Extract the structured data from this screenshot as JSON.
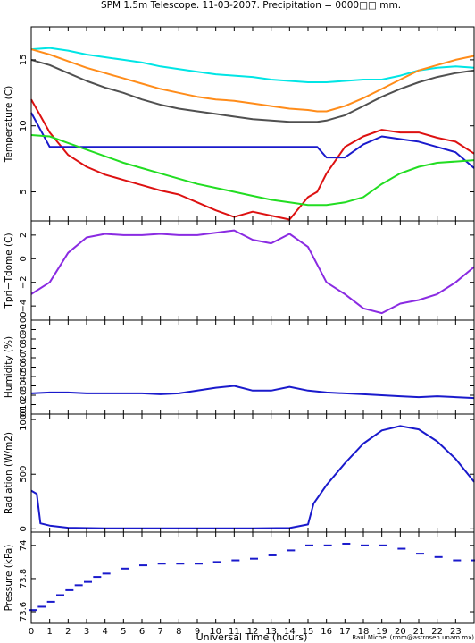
{
  "title": "SPM 1.5m Telescope. 11-03-2007. Precipitation = 0000□□ mm.",
  "credit": "Raul Michel (rmm@astrosen.unam.mx)",
  "xlabel": "Universal Time (hours)",
  "xlim": [
    0,
    24
  ],
  "xticks": [
    "0",
    "1",
    "2",
    "3",
    "4",
    "5",
    "6",
    "7",
    "8",
    "9",
    "10",
    "11",
    "12",
    "13",
    "14",
    "15",
    "16",
    "17",
    "18",
    "19",
    "20",
    "21",
    "22",
    "23"
  ],
  "chart_data": [
    {
      "type": "line",
      "ylabel": "Temperature (C)",
      "ylim": [
        2.8,
        17.5
      ],
      "yticks": [
        5,
        10,
        15
      ],
      "ytick_labels": [
        "5",
        "10",
        "15"
      ],
      "x": [
        0,
        1,
        2,
        3,
        4,
        5,
        6,
        7,
        8,
        9,
        10,
        11,
        12,
        13,
        14,
        15,
        15.5,
        16,
        17,
        18,
        19,
        20,
        21,
        22,
        23,
        24
      ],
      "series": [
        {
          "color": "#00e5e5",
          "values": [
            15.8,
            15.9,
            15.7,
            15.4,
            15.2,
            15.0,
            14.8,
            14.5,
            14.3,
            14.1,
            13.9,
            13.8,
            13.7,
            13.5,
            13.4,
            13.3,
            13.3,
            13.3,
            13.4,
            13.5,
            13.5,
            13.8,
            14.2,
            14.4,
            14.5,
            14.4
          ]
        },
        {
          "color": "#ff8c1a",
          "values": [
            15.8,
            15.4,
            14.9,
            14.4,
            14.0,
            13.6,
            13.2,
            12.8,
            12.5,
            12.2,
            12.0,
            11.9,
            11.7,
            11.5,
            11.3,
            11.2,
            11.1,
            11.1,
            11.5,
            12.1,
            12.8,
            13.5,
            14.2,
            14.6,
            15.0,
            15.3
          ]
        },
        {
          "color": "#505050",
          "values": [
            15.0,
            14.6,
            14.0,
            13.4,
            12.9,
            12.5,
            12.0,
            11.6,
            11.3,
            11.1,
            10.9,
            10.7,
            10.5,
            10.4,
            10.3,
            10.3,
            10.3,
            10.4,
            10.8,
            11.5,
            12.2,
            12.8,
            13.3,
            13.7,
            14.0,
            14.2
          ]
        },
        {
          "color": "#dd1111",
          "values": [
            12.0,
            9.5,
            7.8,
            6.9,
            6.3,
            5.9,
            5.5,
            5.1,
            4.8,
            4.2,
            3.6,
            3.1,
            3.5,
            3.2,
            2.9,
            4.6,
            5.0,
            6.4,
            8.4,
            9.2,
            9.7,
            9.5,
            9.5,
            9.1,
            8.8,
            7.9
          ]
        },
        {
          "color": "#1a1acc",
          "values": [
            11.0,
            8.4,
            8.4,
            8.4,
            8.4,
            8.4,
            8.4,
            8.4,
            8.4,
            8.4,
            8.4,
            8.4,
            8.4,
            8.4,
            8.4,
            8.4,
            8.4,
            7.6,
            7.6,
            8.6,
            9.2,
            9.0,
            8.8,
            8.4,
            8.0,
            6.8
          ]
        },
        {
          "color": "#22dd22",
          "values": [
            9.3,
            9.2,
            8.7,
            8.2,
            7.7,
            7.2,
            6.8,
            6.4,
            6.0,
            5.6,
            5.3,
            5.0,
            4.7,
            4.4,
            4.2,
            4.0,
            4.0,
            4.0,
            4.2,
            4.6,
            5.6,
            6.4,
            6.9,
            7.2,
            7.3,
            7.4
          ]
        }
      ]
    },
    {
      "type": "line",
      "ylabel": "Tpri−Tdome (C)",
      "ylim": [
        -5.2,
        3.2
      ],
      "yticks": [
        2,
        0,
        -2,
        -4
      ],
      "ytick_labels": [
        "2",
        "0",
        "−2",
        "−4"
      ],
      "x": [
        0,
        1,
        2,
        3,
        4,
        5,
        6,
        7,
        8,
        9,
        10,
        11,
        12,
        13,
        14,
        15,
        16,
        17,
        18,
        19,
        20,
        21,
        22,
        23,
        24
      ],
      "series": [
        {
          "color": "#8a2be2",
          "values": [
            -3.0,
            -2.0,
            0.5,
            1.8,
            2.1,
            2.0,
            2.0,
            2.1,
            2.0,
            2.0,
            2.2,
            2.4,
            1.6,
            1.3,
            2.1,
            1.0,
            -2.0,
            -3.0,
            -4.2,
            -4.6,
            -3.8,
            -3.5,
            -3.0,
            -2.0,
            -0.7
          ]
        }
      ]
    },
    {
      "type": "line",
      "ylabel": "Humidity (%)",
      "ylim": [
        0,
        100
      ],
      "yticks": [
        0,
        10,
        20,
        30,
        40,
        50,
        60,
        70,
        80,
        90,
        100
      ],
      "ytick_labels": [
        "0",
        "10",
        "20",
        "30",
        "40",
        "50",
        "60",
        "70",
        "80",
        "90",
        "100"
      ],
      "x": [
        0,
        1,
        2,
        3,
        4,
        5,
        6,
        7,
        8,
        9,
        10,
        11,
        12,
        13,
        14,
        15,
        16,
        17,
        18,
        19,
        20,
        21,
        22,
        23,
        24
      ],
      "series": [
        {
          "color": "#1a1acc",
          "values": [
            22,
            23,
            23,
            22,
            22,
            22,
            22,
            21,
            22,
            25,
            28,
            30,
            25,
            25,
            29,
            25,
            23,
            22,
            21,
            20,
            19,
            18,
            19,
            18,
            17
          ]
        }
      ]
    },
    {
      "type": "line",
      "ylabel": "Radiation (W/m2)",
      "ylim": [
        -30,
        1050
      ],
      "yticks": [
        0,
        500,
        1000
      ],
      "ytick_labels": [
        "0",
        "500",
        "1000"
      ],
      "x": [
        0,
        0.3,
        0.5,
        1,
        2,
        4,
        6,
        8,
        10,
        12,
        14,
        15,
        15.3,
        16,
        17,
        18,
        19,
        20,
        21,
        22,
        23,
        24
      ],
      "series": [
        {
          "color": "#1a1acc",
          "values": [
            350,
            320,
            50,
            30,
            10,
            5,
            5,
            5,
            5,
            5,
            8,
            40,
            230,
            400,
            600,
            780,
            900,
            940,
            910,
            800,
            640,
            430
          ]
        }
      ]
    },
    {
      "type": "scatter",
      "ylabel": "Pressure (kPa)",
      "ylim": [
        73.53,
        74.08
      ],
      "yticks": [
        73.6,
        73.8,
        74
      ],
      "ytick_labels": [
        "73.6",
        "73.8",
        "74"
      ],
      "x": [
        0,
        0.5,
        1,
        1.5,
        2,
        2.5,
        3,
        3.5,
        4,
        5,
        6,
        7,
        8,
        9,
        10,
        11,
        12,
        13,
        14,
        15,
        16,
        17,
        18,
        19,
        20,
        21,
        22,
        23,
        24
      ],
      "series": [
        {
          "color": "#1a1acc",
          "values": [
            73.61,
            73.63,
            73.66,
            73.7,
            73.73,
            73.76,
            73.78,
            73.81,
            73.83,
            73.86,
            73.88,
            73.89,
            73.89,
            73.89,
            73.9,
            73.91,
            73.92,
            73.94,
            73.97,
            74.0,
            74.0,
            74.01,
            74.0,
            74.0,
            73.98,
            73.95,
            73.93,
            73.91,
            73.91
          ]
        }
      ]
    }
  ]
}
